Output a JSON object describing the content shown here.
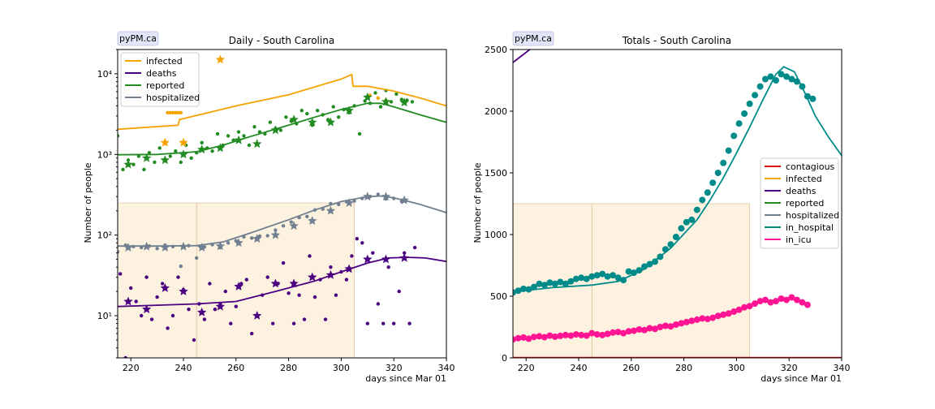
{
  "chart_data": [
    {
      "type": "line",
      "badge": "pyPM.ca",
      "title": "Daily - South Carolina",
      "xlabel": "days since Mar 01",
      "ylabel": "Number of people",
      "yscale": "log",
      "xlim": [
        215,
        340
      ],
      "ylim": [
        3,
        20000
      ],
      "xticks": [
        220,
        240,
        260,
        280,
        300,
        320,
        340
      ],
      "yticks": [
        {
          "value": 10,
          "label": "10¹"
        },
        {
          "value": 100,
          "label": "10²"
        },
        {
          "value": 1000,
          "label": "10³"
        },
        {
          "value": 10000,
          "label": "10⁴"
        }
      ],
      "legend": "top-left",
      "shaded_region": {
        "x": [
          215,
          305
        ],
        "y_top": 250,
        "divider_x": 245,
        "color": "#fdf2e0"
      },
      "series": [
        {
          "name": "infected",
          "color": "#f5a300",
          "x": [
            215,
            238,
            238.5,
            260,
            280,
            300,
            304,
            304.5,
            310,
            320,
            330,
            340
          ],
          "y": [
            2050,
            2300,
            2700,
            4000,
            5500,
            8600,
            9800,
            7000,
            7000,
            6100,
            5000,
            4000
          ]
        },
        {
          "name": "deaths",
          "color": "#4b0082",
          "x": [
            215,
            230,
            245,
            260,
            275,
            290,
            300,
            310,
            318,
            325,
            332,
            340
          ],
          "y": [
            13,
            13.5,
            14,
            15,
            20,
            27,
            35,
            45,
            52,
            53,
            52,
            47
          ]
        },
        {
          "name": "reported",
          "color": "#228b22",
          "x": [
            215,
            230,
            245,
            255,
            265,
            280,
            290,
            300,
            310,
            315,
            320,
            330,
            340
          ],
          "y": [
            990,
            1000,
            1080,
            1300,
            1650,
            2300,
            2900,
            3600,
            4300,
            4300,
            3900,
            3100,
            2500
          ]
        },
        {
          "name": "hospitalized",
          "color": "#708090",
          "x": [
            215,
            230,
            245,
            255,
            265,
            280,
            290,
            300,
            310,
            315,
            320,
            330,
            340
          ],
          "y": [
            73,
            73,
            74,
            82,
            105,
            155,
            205,
            260,
            300,
            305,
            290,
            240,
            190
          ]
        }
      ],
      "scatter": [
        {
          "series": "infected",
          "color": "#f5a300",
          "x": [
            234,
            235,
            236,
            237,
            238,
            239
          ],
          "y": [
            3300,
            3300,
            3300,
            3300,
            3300,
            3300
          ]
        },
        {
          "series": "infected",
          "color": "#f5a300",
          "x": [
            311,
            314,
            317
          ],
          "y": [
            5400,
            5000,
            4700
          ]
        },
        {
          "series": "reported",
          "color": "#228b22",
          "x": [
            215,
            217,
            219,
            221,
            223,
            225,
            227,
            229,
            231,
            233,
            235,
            237,
            239,
            241,
            243,
            245,
            247,
            249,
            251,
            253,
            255,
            257,
            259,
            261,
            263,
            265,
            267,
            269,
            271,
            273,
            275,
            277,
            279,
            281,
            283,
            285,
            287,
            289,
            291,
            293,
            295,
            297,
            299,
            301,
            303,
            305,
            307,
            309,
            311,
            313,
            315,
            317,
            319,
            321,
            323,
            325,
            327
          ],
          "y": [
            1700,
            650,
            850,
            750,
            950,
            650,
            1050,
            800,
            1200,
            850,
            950,
            1100,
            800,
            1300,
            900,
            1050,
            1400,
            1200,
            1100,
            1800,
            1300,
            1700,
            1500,
            1900,
            1700,
            1300,
            2200,
            1900,
            1800,
            2500,
            2100,
            2000,
            2900,
            2600,
            2400,
            3500,
            3200,
            2300,
            3500,
            3100,
            2700,
            3900,
            2900,
            3600,
            3300,
            4000,
            1800,
            4600,
            4300,
            5800,
            3900,
            6200,
            4500,
            5600,
            4800,
            4700,
            4500
          ]
        },
        {
          "series": "hospitalized",
          "color": "#708090",
          "x": [
            215,
            218,
            221,
            224,
            227,
            230,
            233,
            236,
            239,
            242,
            245,
            248,
            251,
            254,
            257,
            260,
            263,
            266,
            269,
            272,
            275,
            278,
            281,
            284,
            287,
            290,
            293,
            296,
            299,
            302,
            305,
            308,
            311,
            314,
            317,
            320,
            323
          ],
          "y": [
            62,
            75,
            72,
            70,
            73,
            68,
            75,
            72,
            41,
            74,
            52,
            71,
            76,
            70,
            80,
            85,
            95,
            92,
            97,
            98,
            115,
            130,
            145,
            165,
            170,
            205,
            210,
            245,
            240,
            260,
            265,
            285,
            300,
            320,
            280,
            285,
            260
          ]
        },
        {
          "series": "deaths",
          "color": "#4b0082",
          "x": [
            216,
            218,
            220,
            222,
            224,
            226,
            228,
            230,
            232,
            234,
            236,
            238,
            240,
            242,
            244,
            246,
            248,
            250,
            252,
            254,
            256,
            258,
            260,
            262,
            264,
            266,
            268,
            270,
            272,
            274,
            276,
            278,
            280,
            282,
            284,
            286,
            288,
            290,
            292,
            294,
            296,
            298,
            300,
            302,
            304,
            306,
            308,
            310,
            312,
            314,
            316,
            318,
            320,
            322,
            324,
            326,
            328
          ],
          "y": [
            33,
            3,
            22,
            15,
            10,
            30,
            9,
            17,
            25,
            7,
            10,
            30,
            21,
            12,
            5,
            14,
            9,
            25,
            12,
            14,
            20,
            8,
            13,
            25,
            28,
            6,
            10,
            18,
            30,
            8,
            25,
            45,
            19,
            8,
            18,
            9,
            55,
            17,
            28,
            9,
            40,
            18,
            35,
            28,
            55,
            90,
            80,
            8,
            60,
            14,
            8,
            40,
            8,
            20,
            60,
            8,
            70
          ]
        }
      ],
      "stars": [
        {
          "series": "infected",
          "color": "#f5a300",
          "x": [
            233,
            240,
            254
          ],
          "y": [
            1400,
            1400,
            15000
          ]
        },
        {
          "series": "reported",
          "color": "#228b22",
          "x": [
            219,
            226,
            233,
            240,
            247,
            254,
            261,
            268,
            275,
            282,
            289,
            296,
            303,
            310,
            317,
            324
          ],
          "y": [
            750,
            900,
            850,
            1000,
            1150,
            1200,
            1500,
            1350,
            2000,
            2700,
            2500,
            2500,
            3500,
            5100,
            4500,
            4400
          ]
        },
        {
          "series": "hospitalized",
          "color": "#708090",
          "x": [
            219,
            226,
            233,
            240,
            247,
            254,
            261,
            268,
            275,
            282,
            289,
            296,
            303,
            310,
            317,
            324
          ],
          "y": [
            70,
            72,
            70,
            72,
            70,
            73,
            80,
            90,
            100,
            130,
            150,
            200,
            250,
            300,
            300,
            270
          ]
        },
        {
          "series": "deaths",
          "color": "#4b0082",
          "x": [
            219,
            226,
            233,
            240,
            247,
            254,
            261,
            268,
            275,
            282,
            289,
            296,
            303,
            310,
            317,
            324
          ],
          "y": [
            15,
            12,
            22,
            20,
            11,
            13,
            23,
            10,
            25,
            25,
            30,
            32,
            38,
            50,
            50,
            52
          ]
        }
      ]
    },
    {
      "type": "line",
      "badge": "pyPM.ca",
      "title": "Totals - South Carolina",
      "xlabel": "days since Mar 01",
      "ylabel": "Number of people",
      "yscale": "linear",
      "xlim": [
        215,
        340
      ],
      "ylim": [
        0,
        2500
      ],
      "xticks": [
        220,
        240,
        260,
        280,
        300,
        320,
        340
      ],
      "yticks": [
        {
          "value": 0,
          "label": "0"
        },
        {
          "value": 500,
          "label": "500"
        },
        {
          "value": 1000,
          "label": "1000"
        },
        {
          "value": 1500,
          "label": "1500"
        },
        {
          "value": 2000,
          "label": "2000"
        },
        {
          "value": 2500,
          "label": "2500"
        }
      ],
      "legend": "center-right",
      "shaded_region": {
        "x": [
          215,
          305
        ],
        "y_top": 1250,
        "divider_x": 245,
        "color": "#fdf2e0"
      },
      "series": [
        {
          "name": "contagious",
          "color": "#dd1111",
          "x": [
            215,
            340
          ],
          "y": [
            2,
            2
          ]
        },
        {
          "name": "infected",
          "color": "#f5a300",
          "x": [],
          "y": []
        },
        {
          "name": "deaths",
          "color": "#4b0082",
          "x": [
            215,
            222
          ],
          "y": [
            2395,
            2510
          ]
        },
        {
          "name": "reported",
          "color": "#228b22",
          "x": [],
          "y": []
        },
        {
          "name": "hospitalized",
          "color": "#708090",
          "x": [],
          "y": []
        },
        {
          "name": "in_hospital",
          "color": "#008b8b",
          "x": [
            215,
            230,
            245,
            255,
            265,
            275,
            285,
            290,
            295,
            300,
            305,
            310,
            315,
            318,
            322,
            326,
            330,
            335,
            340
          ],
          "y": [
            535,
            570,
            590,
            620,
            720,
            890,
            1120,
            1280,
            1460,
            1660,
            1870,
            2090,
            2300,
            2360,
            2320,
            2150,
            1960,
            1790,
            1640
          ]
        },
        {
          "name": "in_icu",
          "color": "#ff1493",
          "x": [],
          "y": []
        }
      ],
      "scatter": [
        {
          "series": "in_hospital",
          "color": "#008b8b",
          "x": [
            215,
            217,
            219,
            221,
            223,
            225,
            227,
            229,
            231,
            233,
            235,
            237,
            239,
            241,
            243,
            245,
            247,
            249,
            251,
            253,
            255,
            257,
            259,
            261,
            263,
            265,
            267,
            269,
            271,
            273,
            275,
            277,
            279,
            281,
            283,
            285,
            287,
            289,
            291,
            293,
            295,
            297,
            299,
            301,
            303,
            305,
            307,
            309,
            311,
            313,
            315,
            317,
            319,
            321,
            323,
            325,
            327,
            329
          ],
          "y": [
            530,
            545,
            560,
            555,
            575,
            600,
            590,
            610,
            600,
            615,
            600,
            620,
            640,
            650,
            640,
            660,
            670,
            680,
            660,
            670,
            650,
            630,
            700,
            690,
            710,
            740,
            760,
            780,
            820,
            880,
            920,
            980,
            1050,
            1100,
            1120,
            1200,
            1280,
            1340,
            1420,
            1500,
            1580,
            1680,
            1800,
            1900,
            1980,
            2060,
            2130,
            2200,
            2260,
            2280,
            2250,
            2300,
            2280,
            2260,
            2240,
            2200,
            2120,
            2100
          ]
        },
        {
          "series": "in_icu",
          "color": "#ff1493",
          "x": [
            215,
            217,
            219,
            221,
            223,
            225,
            227,
            229,
            231,
            233,
            235,
            237,
            239,
            241,
            243,
            245,
            247,
            249,
            251,
            253,
            255,
            257,
            259,
            261,
            263,
            265,
            267,
            269,
            271,
            273,
            275,
            277,
            279,
            281,
            283,
            285,
            287,
            289,
            291,
            293,
            295,
            297,
            299,
            301,
            303,
            305,
            307,
            309,
            311,
            313,
            315,
            317,
            319,
            321,
            323,
            325,
            327
          ],
          "y": [
            150,
            160,
            165,
            155,
            170,
            175,
            168,
            180,
            172,
            178,
            185,
            180,
            190,
            185,
            180,
            200,
            190,
            185,
            195,
            205,
            210,
            200,
            215,
            220,
            230,
            225,
            240,
            235,
            250,
            260,
            255,
            270,
            280,
            290,
            300,
            310,
            320,
            315,
            325,
            340,
            350,
            360,
            375,
            390,
            410,
            420,
            440,
            460,
            470,
            450,
            460,
            480,
            470,
            490,
            470,
            450,
            430
          ]
        }
      ],
      "stars": []
    }
  ]
}
